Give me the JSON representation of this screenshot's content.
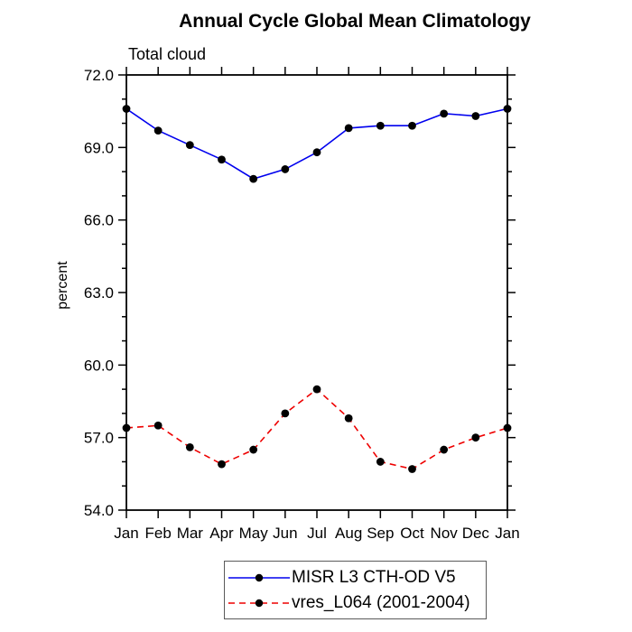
{
  "chart_data": {
    "type": "line",
    "title": "Annual Cycle Global Mean Climatology",
    "subtitle": "Total cloud",
    "xlabel": "",
    "ylabel": "percent",
    "categories": [
      "Jan",
      "Feb",
      "Mar",
      "Apr",
      "May",
      "Jun",
      "Jul",
      "Aug",
      "Sep",
      "Oct",
      "Nov",
      "Dec",
      "Jan"
    ],
    "ylim": [
      54.0,
      72.0
    ],
    "ytick_step": 3.0,
    "minor_tick_step": 1.0,
    "ytick_labels": [
      "72.0",
      "69.0",
      "66.0",
      "63.0",
      "60.0",
      "57.0",
      "54.0"
    ],
    "grid": false,
    "legend_position": "bottom-center",
    "axis_color": "#000000",
    "marker_color": "#000000",
    "series": [
      {
        "name": "MISR L3 CTH-OD V5",
        "color": "#0000EE",
        "style": "solid",
        "marker": "circle",
        "values": [
          70.6,
          69.7,
          69.1,
          68.5,
          67.7,
          68.1,
          68.8,
          69.8,
          69.9,
          69.9,
          70.4,
          70.3,
          70.6
        ]
      },
      {
        "name": "vres_L064 (2001-2004)",
        "color": "#EE0000",
        "style": "dashed",
        "marker": "circle",
        "values": [
          57.4,
          57.5,
          56.6,
          55.9,
          56.5,
          58.0,
          59.0,
          57.8,
          56.0,
          55.7,
          56.5,
          57.0,
          57.4
        ]
      }
    ]
  }
}
